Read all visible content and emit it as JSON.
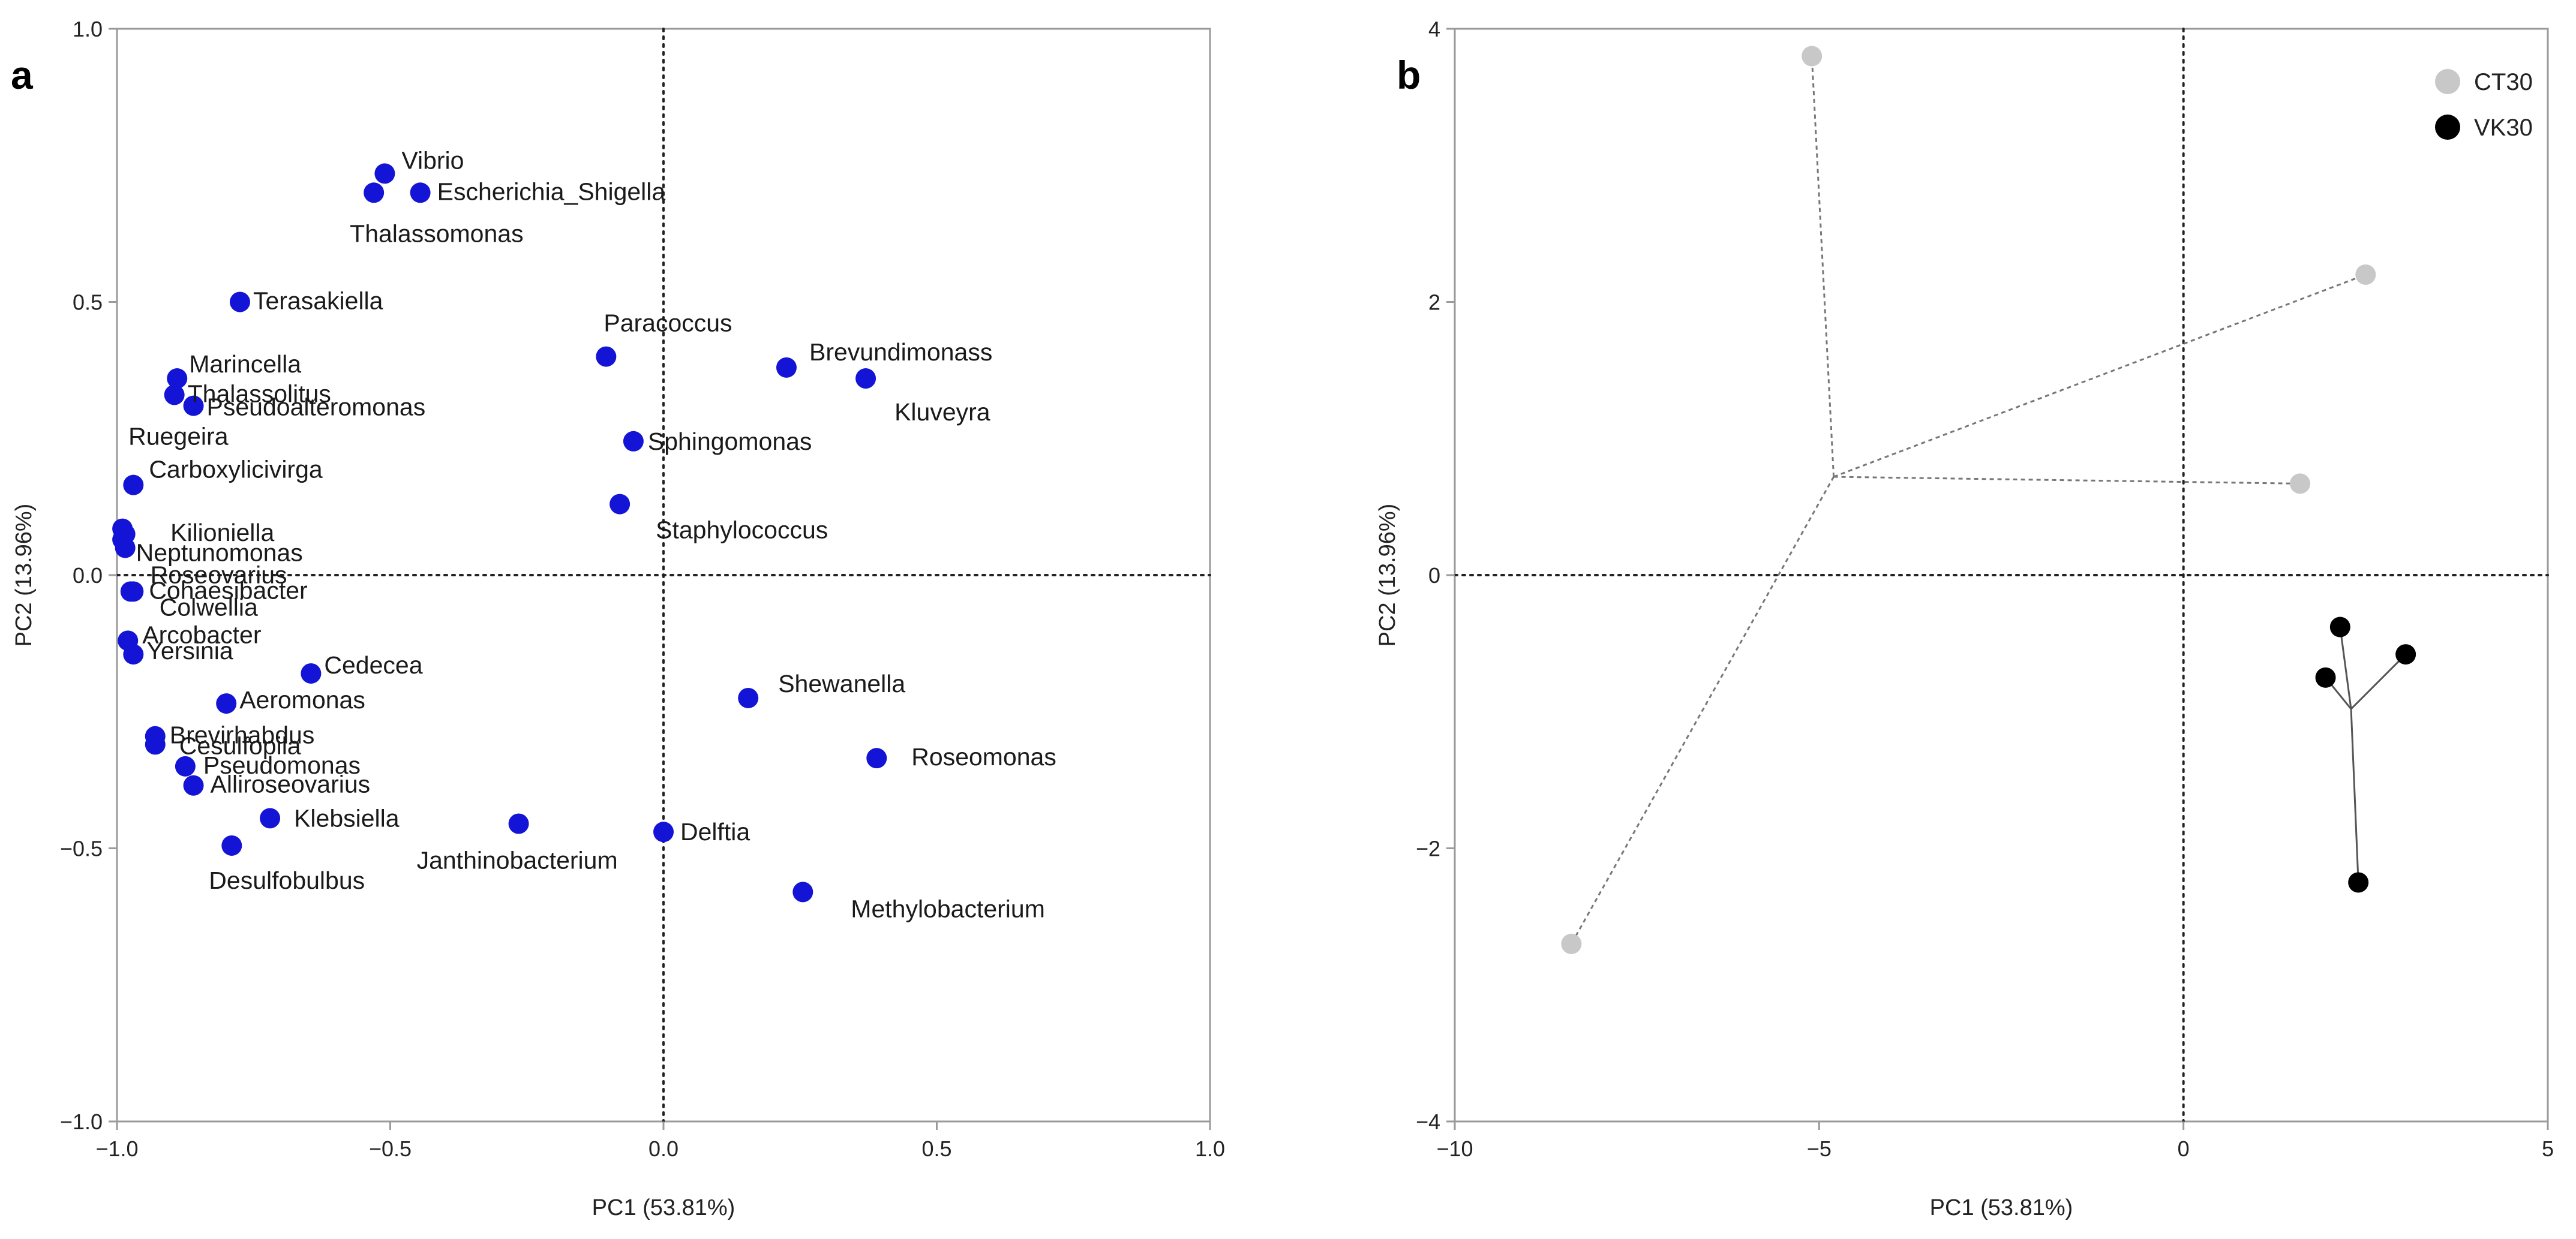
{
  "panels": [
    {
      "letter": "a"
    },
    {
      "letter": "b"
    }
  ],
  "chart_data": [
    {
      "type": "scatter",
      "panel": "a",
      "title": "",
      "xlabel": "PC1 (53.81%)",
      "ylabel": "PC2 (13.96%)",
      "xlim": [
        -1.0,
        1.0
      ],
      "ylim": [
        -1.0,
        1.0
      ],
      "xticks": [
        "−1.0",
        "−0.5",
        "0.0",
        "0.5",
        "1.0"
      ],
      "yticks": [
        "−1.0",
        "−0.5",
        "0.0",
        "0.5",
        "1.0"
      ],
      "reference_lines": {
        "x": 0,
        "y": 0,
        "style": "dotted"
      },
      "marker_color": "#1414d6",
      "points": [
        {
          "label": "Vibrio",
          "x": -0.51,
          "y": 0.735
        },
        {
          "label": "Escherichia_Shigella",
          "x": -0.445,
          "y": 0.7
        },
        {
          "label": "Thalassomonas",
          "x": -0.53,
          "y": 0.7
        },
        {
          "label": "Terasakiella",
          "x": -0.775,
          "y": 0.5
        },
        {
          "label": "Paracoccus",
          "x": -0.105,
          "y": 0.4
        },
        {
          "label": "Brevundimonass",
          "x": 0.225,
          "y": 0.38
        },
        {
          "label": "Kluveyra",
          "x": 0.37,
          "y": 0.36
        },
        {
          "label": "Marincella",
          "x": -0.89,
          "y": 0.36
        },
        {
          "label": "Thalassolitus",
          "x": -0.895,
          "y": 0.33
        },
        {
          "label": "Pseudoalteromonas",
          "x": -0.86,
          "y": 0.31
        },
        {
          "label": "Ruegeira",
          "x": -0.99,
          "y": 0.085
        },
        {
          "label": "Sphingomonas",
          "x": -0.055,
          "y": 0.245
        },
        {
          "label": "Carboxylicivirga",
          "x": -0.97,
          "y": 0.165
        },
        {
          "label": "Neptunomonas",
          "x": -0.985,
          "y": 0.075
        },
        {
          "label": "Kilioniella",
          "x": -0.99,
          "y": 0.065
        },
        {
          "label": "Roseovarius",
          "x": -0.985,
          "y": 0.05
        },
        {
          "label": "Staphylococcus",
          "x": -0.08,
          "y": 0.13
        },
        {
          "label": "Colwellia",
          "x": -0.975,
          "y": -0.03
        },
        {
          "label": "Cohaesibacter",
          "x": -0.97,
          "y": -0.03
        },
        {
          "label": "Arcobacter",
          "x": -0.98,
          "y": -0.12
        },
        {
          "label": "Yersinia",
          "x": -0.97,
          "y": -0.145
        },
        {
          "label": "Cedecea",
          "x": -0.645,
          "y": -0.18
        },
        {
          "label": "Shewanella",
          "x": 0.155,
          "y": -0.225
        },
        {
          "label": "Aeromonas",
          "x": -0.8,
          "y": -0.235
        },
        {
          "label": "Brevirhabdus",
          "x": -0.93,
          "y": -0.295
        },
        {
          "label": "Cesulfopila",
          "x": -0.93,
          "y": -0.31
        },
        {
          "label": "Pseudomonas",
          "x": -0.875,
          "y": -0.35
        },
        {
          "label": "Roseomonas",
          "x": 0.39,
          "y": -0.335
        },
        {
          "label": "Alliroseovarius",
          "x": -0.86,
          "y": -0.385
        },
        {
          "label": "Klebsiella",
          "x": -0.72,
          "y": -0.445
        },
        {
          "label": "Janthinobacterium",
          "x": -0.265,
          "y": -0.455
        },
        {
          "label": "Delftia",
          "x": 0.0,
          "y": -0.47
        },
        {
          "label": "Desulfobulbus",
          "x": -0.79,
          "y": -0.495
        },
        {
          "label": "Methylobacterium",
          "x": 0.255,
          "y": -0.58
        }
      ]
    },
    {
      "type": "scatter",
      "panel": "b",
      "title": "",
      "xlabel": "PC1 (53.81%)",
      "ylabel": "PC2 (13.96%)",
      "xlim": [
        -10,
        5
      ],
      "ylim": [
        -4,
        4
      ],
      "xticks": [
        "−10",
        "−5",
        "0",
        "5"
      ],
      "yticks": [
        "−4",
        "−2",
        "0",
        "2",
        "4"
      ],
      "reference_lines": {
        "x": 0,
        "y": 0,
        "style": "dotted"
      },
      "legend_position": "top-right",
      "series": [
        {
          "name": "CT30",
          "color": "#c8c8c8",
          "centroid": [
            -4.8,
            0.72
          ],
          "connector_style": "dashed",
          "points": [
            [
              -5.1,
              3.8
            ],
            [
              2.5,
              2.2
            ],
            [
              1.6,
              0.67
            ],
            [
              -8.4,
              -2.7
            ]
          ]
        },
        {
          "name": "VK30",
          "color": "#000000",
          "centroid": [
            2.3,
            -0.98
          ],
          "connector_style": "solid",
          "points": [
            [
              2.15,
              -0.38
            ],
            [
              3.05,
              -0.58
            ],
            [
              1.95,
              -0.75
            ],
            [
              2.4,
              -2.25
            ]
          ]
        }
      ]
    }
  ]
}
